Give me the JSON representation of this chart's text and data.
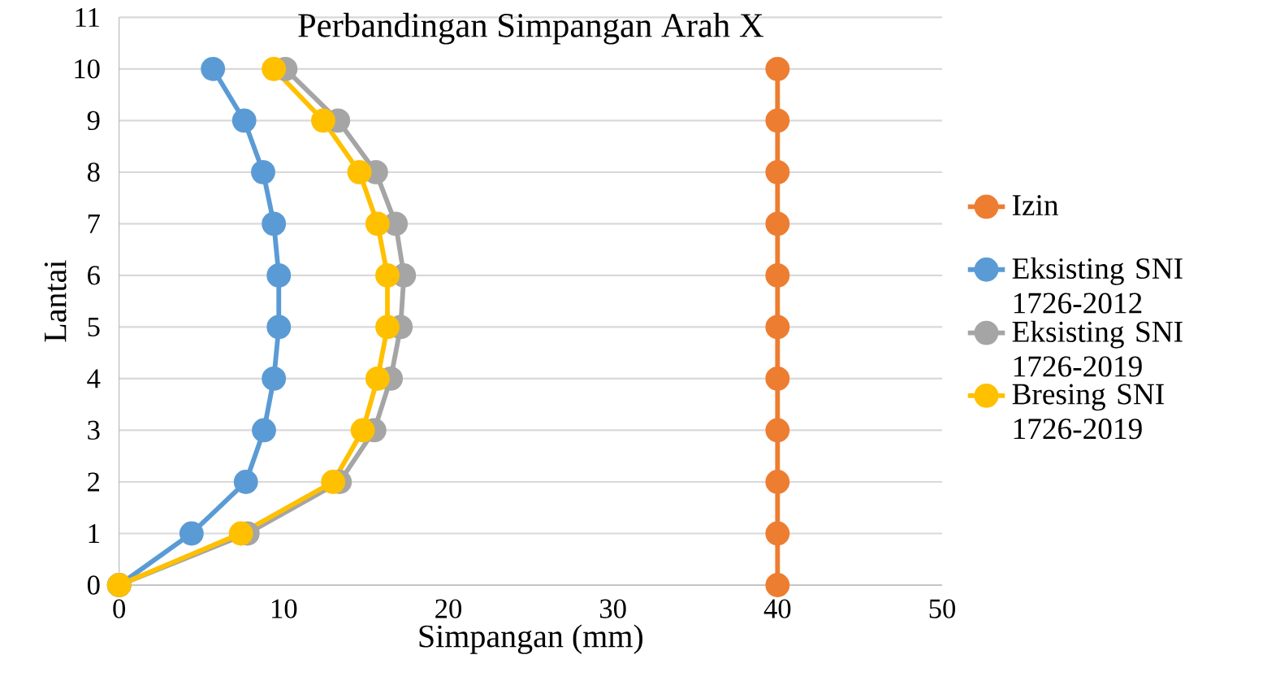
{
  "chart_data": {
    "type": "line",
    "title": "Perbandingan Simpangan Arah X",
    "xlabel": "Simpangan (mm)",
    "ylabel": "Lantai",
    "xlim": [
      0,
      50
    ],
    "xticks": [
      0,
      10,
      20,
      30,
      40,
      50
    ],
    "ylim": [
      0,
      11
    ],
    "yticks": [
      0,
      1,
      2,
      3,
      4,
      5,
      6,
      7,
      8,
      9,
      10,
      11
    ],
    "grid": "y",
    "legend": "right",
    "marker": "circle",
    "line_style": "solid",
    "series": [
      {
        "name": "Izin",
        "color": "#ed7d31",
        "x": [
          40,
          40,
          40,
          40,
          40,
          40,
          40,
          40,
          40,
          40,
          40
        ],
        "values": [
          0,
          1,
          2,
          3,
          4,
          5,
          6,
          7,
          8,
          9,
          10
        ]
      },
      {
        "name": "Eksisting SNI 1726-2012",
        "color": "#5b9bd5",
        "x": [
          0,
          4.4,
          7.7,
          8.8,
          9.4,
          9.7,
          9.7,
          9.4,
          8.75,
          7.6,
          5.7
        ],
        "values": [
          0,
          1,
          2,
          3,
          4,
          5,
          6,
          7,
          8,
          9,
          10
        ]
      },
      {
        "name": "Eksisting SNI 1726-2019",
        "color": "#a5a5a5",
        "x": [
          0,
          7.8,
          13.4,
          15.5,
          16.5,
          17.1,
          17.3,
          16.8,
          15.6,
          13.3,
          10.1
        ],
        "values": [
          0,
          1,
          2,
          3,
          4,
          5,
          6,
          7,
          8,
          9,
          10
        ]
      },
      {
        "name": "Bresing SNI 1726-2019",
        "color": "#ffc000",
        "x": [
          0,
          7.4,
          13.0,
          14.8,
          15.7,
          16.3,
          16.3,
          15.7,
          14.6,
          12.4,
          9.4
        ],
        "values": [
          0,
          1,
          2,
          3,
          4,
          5,
          6,
          7,
          8,
          9,
          10
        ]
      }
    ]
  }
}
